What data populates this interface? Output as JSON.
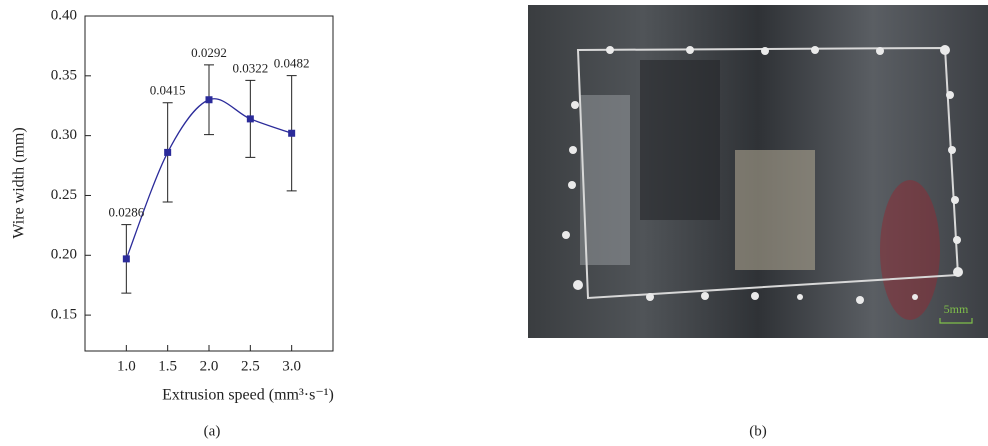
{
  "chart_data": {
    "type": "line",
    "xlabel": "Extrusion speed (mm³·s⁻¹)",
    "ylabel": "Wire width (mm)",
    "x": [
      1.0,
      1.5,
      2.0,
      2.5,
      3.0
    ],
    "series": [
      {
        "color": "#2b2b9a",
        "values": [
          0.197,
          0.286,
          0.33,
          0.314,
          0.302
        ],
        "errors": [
          0.0286,
          0.0415,
          0.0292,
          0.0322,
          0.0482
        ]
      }
    ],
    "xlim": [
      0.5,
      3.5
    ],
    "xticks": [
      {
        "value": 1.0,
        "label": "1.0"
      },
      1.5,
      {
        "value": 2.0,
        "label": "2.0"
      },
      2.5,
      {
        "value": 3.0,
        "label": "3.0"
      }
    ],
    "ylim": [
      0.12,
      0.4
    ],
    "yticks": [
      0.15,
      {
        "value": 0.2,
        "label": "0.20"
      },
      0.25,
      {
        "value": 0.3,
        "label": "0.30"
      },
      0.35,
      {
        "value": 0.4,
        "label": "0.40"
      }
    ]
  },
  "panels": [
    "(a)",
    "(b)"
  ],
  "photo": {
    "scale_label": "5mm"
  }
}
